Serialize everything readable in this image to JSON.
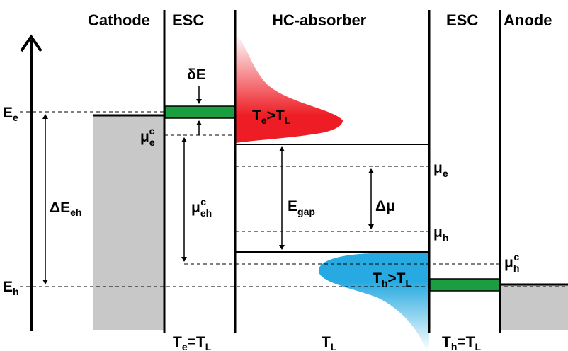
{
  "headers": {
    "cathode": "Cathode",
    "esc_left": "ESC",
    "absorber": "HC-absorber",
    "esc_right": "ESC",
    "anode": "Anode"
  },
  "energy_levels": {
    "e_base": "E",
    "e_sub": "e",
    "h_base": "E",
    "h_sub": "h"
  },
  "delta_e": "δE",
  "delta_e_eh": {
    "base": "ΔE",
    "sub": "eh"
  },
  "mu_e_c": {
    "base": "μ",
    "sub": "e",
    "sup": "c"
  },
  "mu_eh_c": {
    "base": "μ",
    "sub": "eh",
    "sup": "c"
  },
  "mu_h_c": {
    "base": "μ",
    "sub": "h",
    "sup": "c"
  },
  "e_gap": {
    "base": "E",
    "sub": "gap"
  },
  "delta_mu": "Δμ",
  "mu_e": {
    "base": "μ",
    "sub": "e"
  },
  "mu_h": {
    "base": "μ",
    "sub": "h"
  },
  "electron_dist": {
    "t1": "T",
    "s1": "e",
    "op": ">T",
    "s2": "L"
  },
  "hole_dist": {
    "t1": "T",
    "s1": "h",
    "op": ">T",
    "s2": "L"
  },
  "bottom": {
    "left": {
      "t1": "T",
      "s1": "e",
      "op": "=T",
      "s2": "L"
    },
    "middle": {
      "t1": "T",
      "s1": "L"
    },
    "right": {
      "t1": "T",
      "s1": "h",
      "op": "=T",
      "s2": "L"
    }
  },
  "colors": {
    "electron_red": "#ee1c24",
    "hole_blue": "#27aae1",
    "esc_green": "#1a9e3f",
    "electrode_gray": "#c8c8c8"
  }
}
